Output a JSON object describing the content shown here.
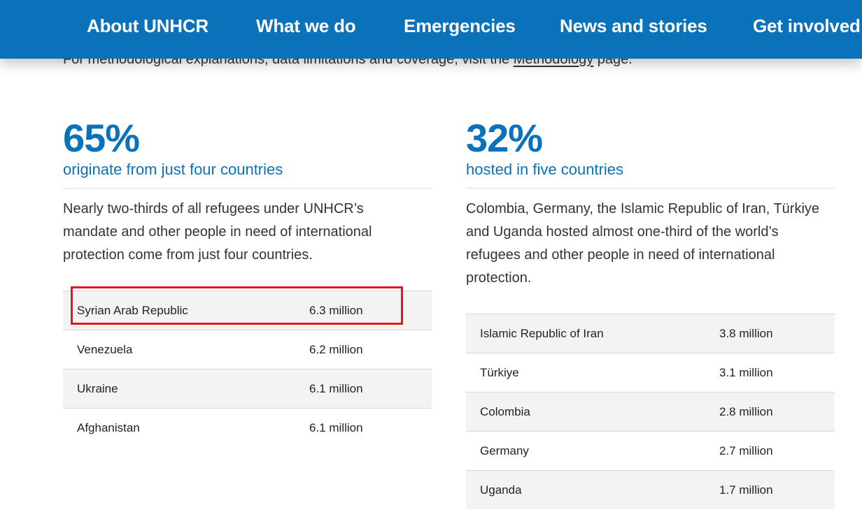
{
  "nav": {
    "items": [
      "About UNHCR",
      "What we do",
      "Emergencies",
      "News and stories",
      "Get involved"
    ]
  },
  "intro": {
    "before": "For methodological explanations, data limitations and coverage, visit the ",
    "link": "Methodology",
    "after": " page."
  },
  "left": {
    "stat": "65%",
    "subtitle": "originate from just four countries",
    "description": "Nearly two-thirds of all refugees under UNHCR’s mandate and other people in need of international protection come from just four countries.",
    "rows": [
      {
        "country": "Syrian Arab Republic",
        "value": "6.3 million"
      },
      {
        "country": "Venezuela",
        "value": "6.2 million"
      },
      {
        "country": "Ukraine",
        "value": "6.1 million"
      },
      {
        "country": "Afghanistan",
        "value": "6.1 million"
      }
    ]
  },
  "right": {
    "stat": "32%",
    "subtitle": "hosted in five countries",
    "description": "Colombia, Germany, the Islamic Republic of Iran, Türkiye and Uganda hosted almost one-third of the world’s refugees and other people in need of international protection.",
    "rows": [
      {
        "country": "Islamic Republic of Iran",
        "value": "3.8 million"
      },
      {
        "country": "Türkiye",
        "value": "3.1 million"
      },
      {
        "country": "Colombia",
        "value": "2.8 million"
      },
      {
        "country": "Germany",
        "value": "2.7 million"
      },
      {
        "country": "Uganda",
        "value": "1.7 million"
      }
    ]
  },
  "colors": {
    "brand_blue": "#0a72ba",
    "highlight_red": "#e0181f"
  }
}
